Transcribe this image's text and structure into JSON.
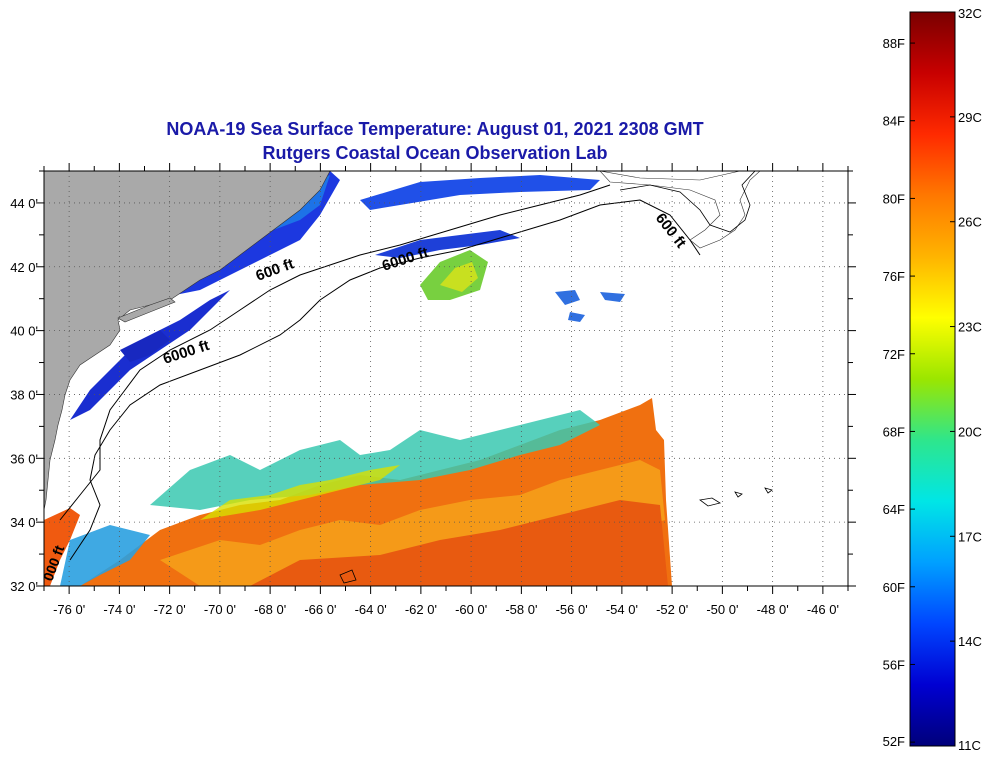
{
  "title_line1": "NOAA-19 Sea Surface Temperature:  August 01, 2021 2308 GMT",
  "title_line2": "Rutgers Coastal Ocean Observation Lab",
  "map": {
    "lon_range": [
      -77,
      -45
    ],
    "lat_range": [
      32,
      45
    ],
    "lon_ticks": [
      {
        "value": -76,
        "label": "-76 0'"
      },
      {
        "value": -74,
        "label": "-74 0'"
      },
      {
        "value": -72,
        "label": "-72 0'"
      },
      {
        "value": -70,
        "label": "-70 0'"
      },
      {
        "value": -68,
        "label": "-68 0'"
      },
      {
        "value": -66,
        "label": "-66 0'"
      },
      {
        "value": -64,
        "label": "-64 0'"
      },
      {
        "value": -62,
        "label": "-62 0'"
      },
      {
        "value": -60,
        "label": "-60 0'"
      },
      {
        "value": -58,
        "label": "-58 0'"
      },
      {
        "value": -56,
        "label": "-56 0'"
      },
      {
        "value": -54,
        "label": "-54 0'"
      },
      {
        "value": -52,
        "label": "-52 0'"
      },
      {
        "value": -50,
        "label": "-50 0'"
      },
      {
        "value": -48,
        "label": "-48 0'"
      },
      {
        "value": -46,
        "label": "-46 0'"
      }
    ],
    "lat_ticks": [
      {
        "value": 44,
        "label": "44 0'"
      },
      {
        "value": 42,
        "label": "42 0'"
      },
      {
        "value": 40,
        "label": "40 0'"
      },
      {
        "value": 38,
        "label": "38 0'"
      },
      {
        "value": 36,
        "label": "36 0'"
      },
      {
        "value": 34,
        "label": "34 0'"
      },
      {
        "value": 32,
        "label": "32 0'"
      }
    ],
    "contour_labels": {
      "shelf_600_west": "600 ft",
      "shelf_600_east": "600 ft",
      "slope_6000_north": "6000 ft",
      "slope_6000_mid": "6000 ft",
      "slope_6000_south": "000 ft"
    },
    "colors": {
      "land": "#a9a9a9",
      "cloud": "#ffffff",
      "grid": "#555555",
      "contour": "#000000"
    }
  },
  "colorbar": {
    "min_c": 11,
    "max_c": 32,
    "colors_top_to_bottom": [
      "#7a0000",
      "#c80000",
      "#ff2a00",
      "#ff7800",
      "#ffb400",
      "#ffff00",
      "#9be600",
      "#2ee68c",
      "#00e6e6",
      "#00a0ff",
      "#0046ff",
      "#0000d2",
      "#00007a"
    ],
    "fahrenheit_labels": [
      "88F",
      "84F",
      "80F",
      "76F",
      "72F",
      "68F",
      "64F",
      "60F",
      "56F",
      "52F"
    ],
    "celsius_labels": [
      "32C",
      "29C",
      "26C",
      "23C",
      "20C",
      "17C",
      "14C",
      "11C"
    ]
  }
}
